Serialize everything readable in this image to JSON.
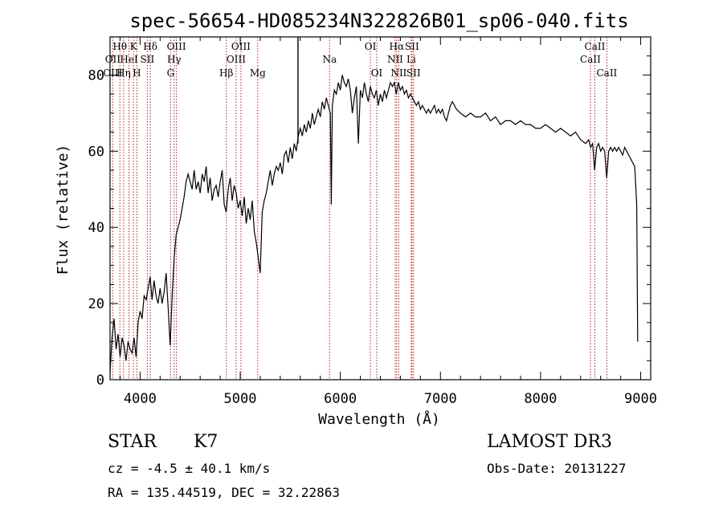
{
  "chart_data": {
    "type": "line",
    "title": "spec-56654-HD085234N322826B01_sp06-040.fits",
    "xlabel": "Wavelength (Å)",
    "ylabel": "Flux (relative)",
    "xlim": [
      3700,
      9100
    ],
    "ylim": [
      0,
      90
    ],
    "xticks": [
      4000,
      5000,
      6000,
      7000,
      8000,
      9000
    ],
    "yticks": [
      0,
      20,
      40,
      60,
      80
    ],
    "series": [
      {
        "name": "flux",
        "points": [
          [
            3700,
            2
          ],
          [
            3720,
            11
          ],
          [
            3740,
            16
          ],
          [
            3760,
            8
          ],
          [
            3780,
            12
          ],
          [
            3800,
            6
          ],
          [
            3820,
            11
          ],
          [
            3840,
            9
          ],
          [
            3860,
            5
          ],
          [
            3880,
            10
          ],
          [
            3900,
            8
          ],
          [
            3920,
            7
          ],
          [
            3940,
            11
          ],
          [
            3960,
            6
          ],
          [
            3980,
            15
          ],
          [
            4000,
            18
          ],
          [
            4020,
            16
          ],
          [
            4040,
            22
          ],
          [
            4060,
            21
          ],
          [
            4080,
            24
          ],
          [
            4100,
            27
          ],
          [
            4120,
            21
          ],
          [
            4140,
            26
          ],
          [
            4160,
            22
          ],
          [
            4180,
            20
          ],
          [
            4200,
            24
          ],
          [
            4220,
            20
          ],
          [
            4240,
            23
          ],
          [
            4260,
            28
          ],
          [
            4280,
            19
          ],
          [
            4300,
            9
          ],
          [
            4320,
            22
          ],
          [
            4340,
            32
          ],
          [
            4360,
            38
          ],
          [
            4380,
            40
          ],
          [
            4400,
            42
          ],
          [
            4420,
            45
          ],
          [
            4440,
            48
          ],
          [
            4460,
            52
          ],
          [
            4480,
            54
          ],
          [
            4500,
            52
          ],
          [
            4520,
            50
          ],
          [
            4540,
            55
          ],
          [
            4560,
            50
          ],
          [
            4580,
            52
          ],
          [
            4600,
            49
          ],
          [
            4620,
            54
          ],
          [
            4640,
            52
          ],
          [
            4660,
            56
          ],
          [
            4680,
            49
          ],
          [
            4700,
            53
          ],
          [
            4720,
            47
          ],
          [
            4740,
            50
          ],
          [
            4760,
            51
          ],
          [
            4780,
            48
          ],
          [
            4800,
            52
          ],
          [
            4820,
            55
          ],
          [
            4840,
            46
          ],
          [
            4860,
            44
          ],
          [
            4880,
            50
          ],
          [
            4900,
            53
          ],
          [
            4920,
            47
          ],
          [
            4940,
            51
          ],
          [
            4960,
            49
          ],
          [
            4980,
            45
          ],
          [
            5000,
            47
          ],
          [
            5020,
            43
          ],
          [
            5040,
            48
          ],
          [
            5060,
            41
          ],
          [
            5080,
            45
          ],
          [
            5100,
            42
          ],
          [
            5120,
            47
          ],
          [
            5140,
            39
          ],
          [
            5160,
            36
          ],
          [
            5180,
            32
          ],
          [
            5200,
            28
          ],
          [
            5220,
            44
          ],
          [
            5240,
            47
          ],
          [
            5260,
            49
          ],
          [
            5280,
            52
          ],
          [
            5300,
            55
          ],
          [
            5320,
            51
          ],
          [
            5340,
            54
          ],
          [
            5360,
            56
          ],
          [
            5380,
            55
          ],
          [
            5400,
            57
          ],
          [
            5420,
            54
          ],
          [
            5440,
            59
          ],
          [
            5460,
            60
          ],
          [
            5480,
            57
          ],
          [
            5500,
            61
          ],
          [
            5520,
            58
          ],
          [
            5540,
            62
          ],
          [
            5560,
            60
          ],
          [
            5580,
            64
          ],
          [
            5600,
            66
          ],
          [
            5620,
            64
          ],
          [
            5640,
            67
          ],
          [
            5660,
            65
          ],
          [
            5680,
            68
          ],
          [
            5700,
            66
          ],
          [
            5720,
            70
          ],
          [
            5740,
            67
          ],
          [
            5760,
            69
          ],
          [
            5780,
            71
          ],
          [
            5800,
            69
          ],
          [
            5820,
            73
          ],
          [
            5840,
            71
          ],
          [
            5860,
            74
          ],
          [
            5880,
            72
          ],
          [
            5900,
            70
          ],
          [
            5910,
            46
          ],
          [
            5920,
            72
          ],
          [
            5940,
            76
          ],
          [
            5960,
            75
          ],
          [
            5980,
            78
          ],
          [
            6000,
            76
          ],
          [
            6020,
            80
          ],
          [
            6040,
            78
          ],
          [
            6060,
            77
          ],
          [
            6080,
            79
          ],
          [
            6100,
            76
          ],
          [
            6120,
            70
          ],
          [
            6140,
            74
          ],
          [
            6160,
            77
          ],
          [
            6180,
            62
          ],
          [
            6200,
            76
          ],
          [
            6220,
            74
          ],
          [
            6240,
            78
          ],
          [
            6260,
            75
          ],
          [
            6280,
            73
          ],
          [
            6300,
            77
          ],
          [
            6320,
            75
          ],
          [
            6340,
            74
          ],
          [
            6360,
            76
          ],
          [
            6380,
            72
          ],
          [
            6400,
            75
          ],
          [
            6420,
            73
          ],
          [
            6440,
            76
          ],
          [
            6460,
            74
          ],
          [
            6480,
            76
          ],
          [
            6500,
            78
          ],
          [
            6520,
            77
          ],
          [
            6540,
            78
          ],
          [
            6560,
            75
          ],
          [
            6580,
            78
          ],
          [
            6600,
            76
          ],
          [
            6620,
            77
          ],
          [
            6640,
            75
          ],
          [
            6660,
            76
          ],
          [
            6680,
            74
          ],
          [
            6700,
            75
          ],
          [
            6720,
            74
          ],
          [
            6740,
            73
          ],
          [
            6760,
            72
          ],
          [
            6780,
            73
          ],
          [
            6800,
            71
          ],
          [
            6820,
            72
          ],
          [
            6840,
            71
          ],
          [
            6860,
            70
          ],
          [
            6880,
            71
          ],
          [
            6900,
            70
          ],
          [
            6920,
            71
          ],
          [
            6940,
            72
          ],
          [
            6960,
            70
          ],
          [
            6980,
            71
          ],
          [
            7000,
            70
          ],
          [
            7020,
            71
          ],
          [
            7040,
            69
          ],
          [
            7060,
            68
          ],
          [
            7080,
            70
          ],
          [
            7100,
            72
          ],
          [
            7120,
            73
          ],
          [
            7140,
            72
          ],
          [
            7160,
            71
          ],
          [
            7200,
            70
          ],
          [
            7250,
            69
          ],
          [
            7300,
            70
          ],
          [
            7350,
            69
          ],
          [
            7400,
            69
          ],
          [
            7450,
            70
          ],
          [
            7500,
            68
          ],
          [
            7550,
            69
          ],
          [
            7600,
            67
          ],
          [
            7650,
            68
          ],
          [
            7700,
            68
          ],
          [
            7750,
            67
          ],
          [
            7800,
            68
          ],
          [
            7850,
            67
          ],
          [
            7900,
            67
          ],
          [
            7950,
            66
          ],
          [
            8000,
            66
          ],
          [
            8050,
            67
          ],
          [
            8100,
            66
          ],
          [
            8150,
            65
          ],
          [
            8200,
            66
          ],
          [
            8250,
            65
          ],
          [
            8300,
            64
          ],
          [
            8350,
            65
          ],
          [
            8400,
            63
          ],
          [
            8450,
            62
          ],
          [
            8480,
            63
          ],
          [
            8500,
            61
          ],
          [
            8520,
            62
          ],
          [
            8540,
            55
          ],
          [
            8560,
            61
          ],
          [
            8580,
            62
          ],
          [
            8600,
            60
          ],
          [
            8620,
            61
          ],
          [
            8640,
            60
          ],
          [
            8660,
            53
          ],
          [
            8680,
            60
          ],
          [
            8700,
            61
          ],
          [
            8720,
            60
          ],
          [
            8740,
            61
          ],
          [
            8760,
            60
          ],
          [
            8780,
            61
          ],
          [
            8800,
            60
          ],
          [
            8820,
            59
          ],
          [
            8840,
            61
          ],
          [
            8860,
            60
          ],
          [
            8880,
            59
          ],
          [
            8900,
            58
          ],
          [
            8920,
            57
          ],
          [
            8940,
            56
          ],
          [
            8960,
            46
          ],
          [
            8970,
            10
          ]
        ]
      }
    ],
    "spectral_lines": [
      {
        "label": "Hθ",
        "wavelength": 3798,
        "row": 1
      },
      {
        "label": "OII",
        "wavelength": 3727,
        "row": 2
      },
      {
        "label": "OIII",
        "wavelength": 3727,
        "row": 3
      },
      {
        "label": "K",
        "wavelength": 3934,
        "row": 1
      },
      {
        "label": "HeI",
        "wavelength": 3889,
        "row": 2
      },
      {
        "label": "Hη",
        "wavelength": 3835,
        "row": 3
      },
      {
        "label": "Hδ",
        "wavelength": 4102,
        "row": 1
      },
      {
        "label": "SII",
        "wavelength": 4072,
        "row": 2
      },
      {
        "label": "H",
        "wavelength": 3968,
        "row": 3
      },
      {
        "label": "OIII",
        "wavelength": 4363,
        "row": 1
      },
      {
        "label": "Hγ",
        "wavelength": 4340,
        "row": 2
      },
      {
        "label": "G",
        "wavelength": 4305,
        "row": 3
      },
      {
        "label": "OIII",
        "wavelength": 5007,
        "row": 1
      },
      {
        "label": "OIII",
        "wavelength": 4959,
        "row": 2
      },
      {
        "label": "Hβ",
        "wavelength": 4861,
        "row": 3
      },
      {
        "label": "Mg",
        "wavelength": 5175,
        "row": 3
      },
      {
        "label": "Na",
        "wavelength": 5893,
        "row": 2
      },
      {
        "label": "OI",
        "wavelength": 6300,
        "row": 1
      },
      {
        "label": "OI",
        "wavelength": 6364,
        "row": 3
      },
      {
        "label": "Hα",
        "wavelength": 6563,
        "row": 1
      },
      {
        "label": "SII",
        "wavelength": 6716,
        "row": 1
      },
      {
        "label": "NII",
        "wavelength": 6548,
        "row": 2
      },
      {
        "label": "Li",
        "wavelength": 6708,
        "row": 2
      },
      {
        "label": "NII",
        "wavelength": 6584,
        "row": 3
      },
      {
        "label": "SII",
        "wavelength": 6731,
        "row": 3
      },
      {
        "label": "CaII",
        "wavelength": 8542,
        "row": 1
      },
      {
        "label": "CaII",
        "wavelength": 8498,
        "row": 2
      },
      {
        "label": "CaII",
        "wavelength": 8662,
        "row": 3
      }
    ]
  },
  "info": {
    "object_type": "STAR",
    "subclass": "K7",
    "survey": "LAMOST DR3",
    "redshift": "cz = -4.5 ± 40.1 km/s",
    "obs_date": "Obs-Date: 20131227",
    "coords": "RA = 135.44519, DEC =  32.22863"
  }
}
